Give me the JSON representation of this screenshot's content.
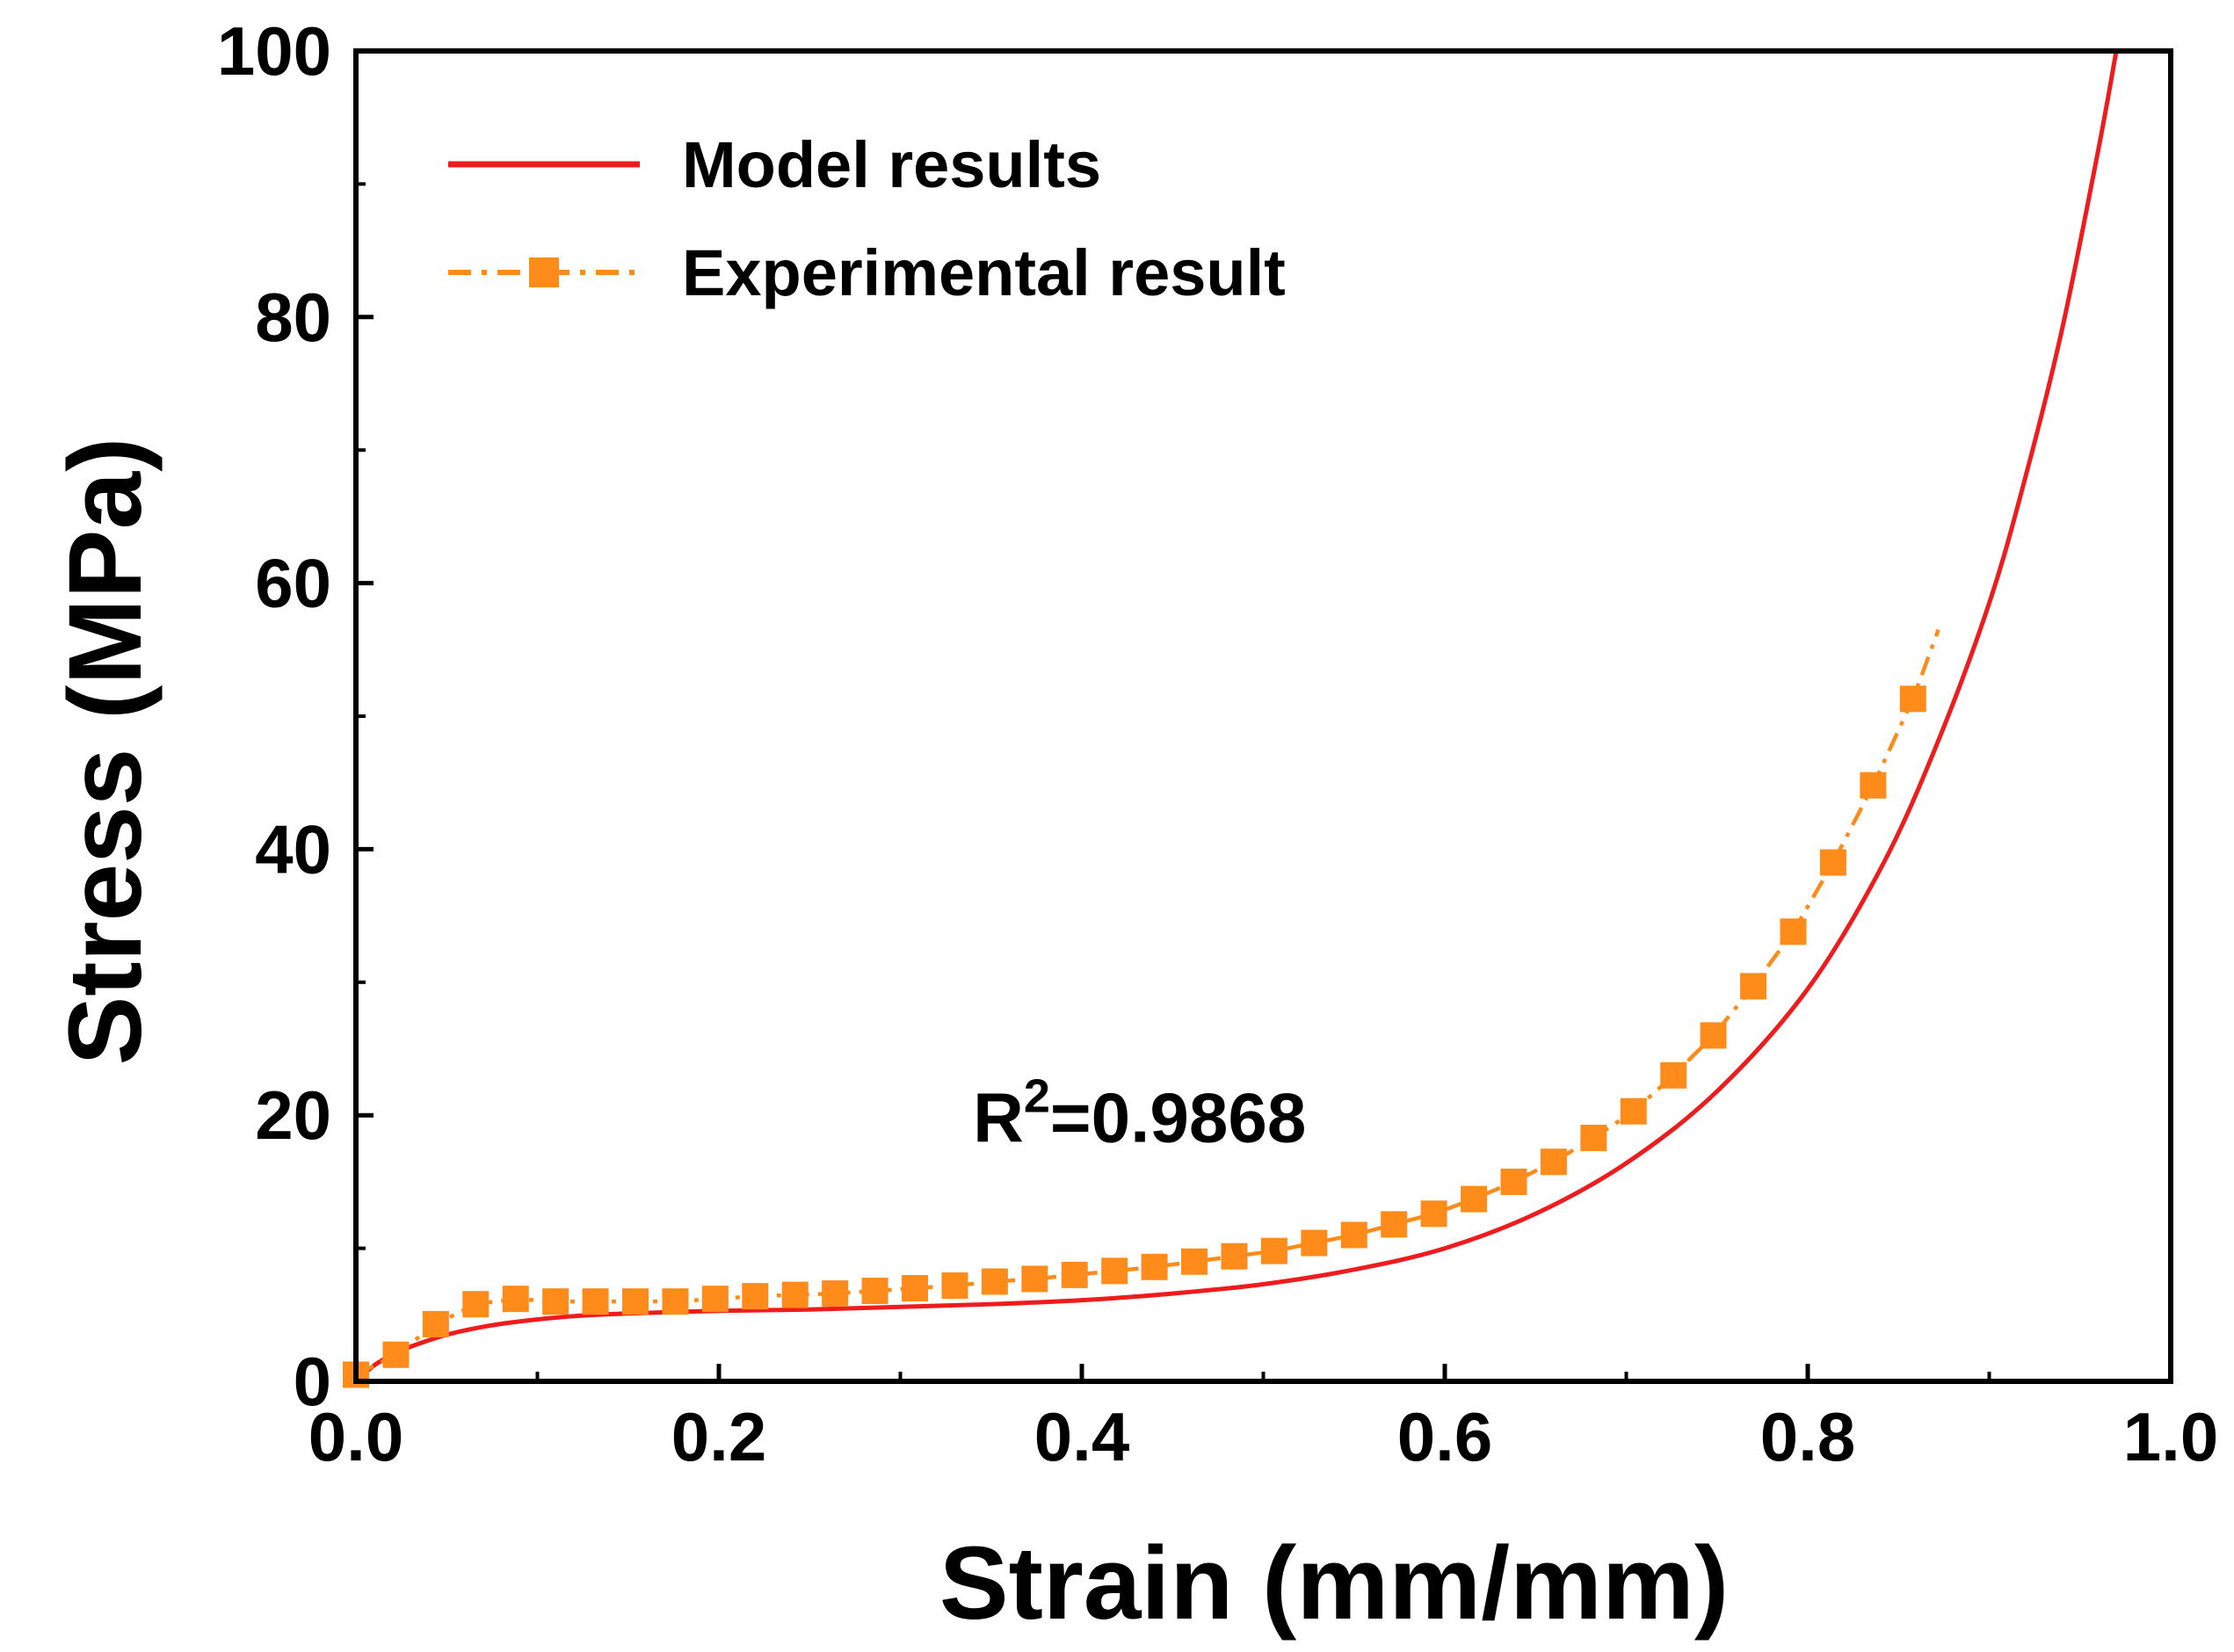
{
  "chart_data": {
    "type": "line",
    "title": "",
    "xlabel": "Strain (mm/mm)",
    "ylabel": "Stress (MPa)",
    "xlim": [
      0.0,
      1.0
    ],
    "ylim": [
      0,
      100
    ],
    "xticks": [
      0.0,
      0.2,
      0.4,
      0.6,
      0.8,
      1.0
    ],
    "xtick_labels": [
      "0.0",
      "0.2",
      "0.4",
      "0.6",
      "0.8",
      "1.0"
    ],
    "yticks": [
      0,
      20,
      40,
      60,
      80,
      100
    ],
    "ytick_labels": [
      "0",
      "20",
      "40",
      "60",
      "80",
      "100"
    ],
    "grid": false,
    "legend_position": "top-left",
    "annotation": {
      "text_main": "R",
      "text_sup": "2",
      "text_tail": "=0.9868",
      "x": 0.34,
      "y": 18
    },
    "series": [
      {
        "name": "Model results",
        "style": "solid-line",
        "color": "#ee1c1c",
        "x": [
          0.0,
          0.01,
          0.02,
          0.03,
          0.05,
          0.07,
          0.09,
          0.12,
          0.15,
          0.2,
          0.25,
          0.3,
          0.35,
          0.4,
          0.45,
          0.5,
          0.55,
          0.6,
          0.65,
          0.7,
          0.75,
          0.8,
          0.84,
          0.87,
          0.9,
          0.92,
          0.94,
          0.96,
          0.97
        ],
        "y": [
          0.0,
          1.2,
          2.0,
          2.6,
          3.5,
          4.1,
          4.5,
          4.9,
          5.1,
          5.3,
          5.4,
          5.6,
          5.8,
          6.1,
          6.6,
          7.3,
          8.4,
          10.0,
          12.6,
          16.4,
          21.8,
          29.5,
          38.5,
          47.5,
          58.5,
          68.0,
          79.0,
          92.5,
          100.0
        ]
      },
      {
        "name": "Experimental result",
        "style": "dash-dot-square",
        "color": "#ff8c1a",
        "x": [
          0.0,
          0.022,
          0.044,
          0.066,
          0.088,
          0.11,
          0.132,
          0.154,
          0.176,
          0.198,
          0.22,
          0.242,
          0.264,
          0.286,
          0.308,
          0.33,
          0.352,
          0.374,
          0.396,
          0.418,
          0.44,
          0.462,
          0.484,
          0.506,
          0.528,
          0.55,
          0.572,
          0.594,
          0.616,
          0.638,
          0.66,
          0.682,
          0.704,
          0.726,
          0.748,
          0.77,
          0.792,
          0.814,
          0.836,
          0.858
        ],
        "y": [
          0.5,
          2.0,
          4.3,
          5.8,
          6.2,
          6.0,
          6.0,
          6.0,
          6.0,
          6.2,
          6.4,
          6.5,
          6.6,
          6.8,
          7.0,
          7.2,
          7.5,
          7.7,
          8.0,
          8.3,
          8.6,
          9.0,
          9.4,
          9.8,
          10.4,
          11.0,
          11.8,
          12.6,
          13.7,
          15.0,
          16.5,
          18.3,
          20.3,
          23.0,
          26.0,
          29.7,
          33.8,
          39.0,
          44.8,
          51.3
        ],
        "tail_x": [
          0.858,
          0.872
        ],
        "tail_y": [
          51.3,
          56.5
        ]
      }
    ]
  }
}
